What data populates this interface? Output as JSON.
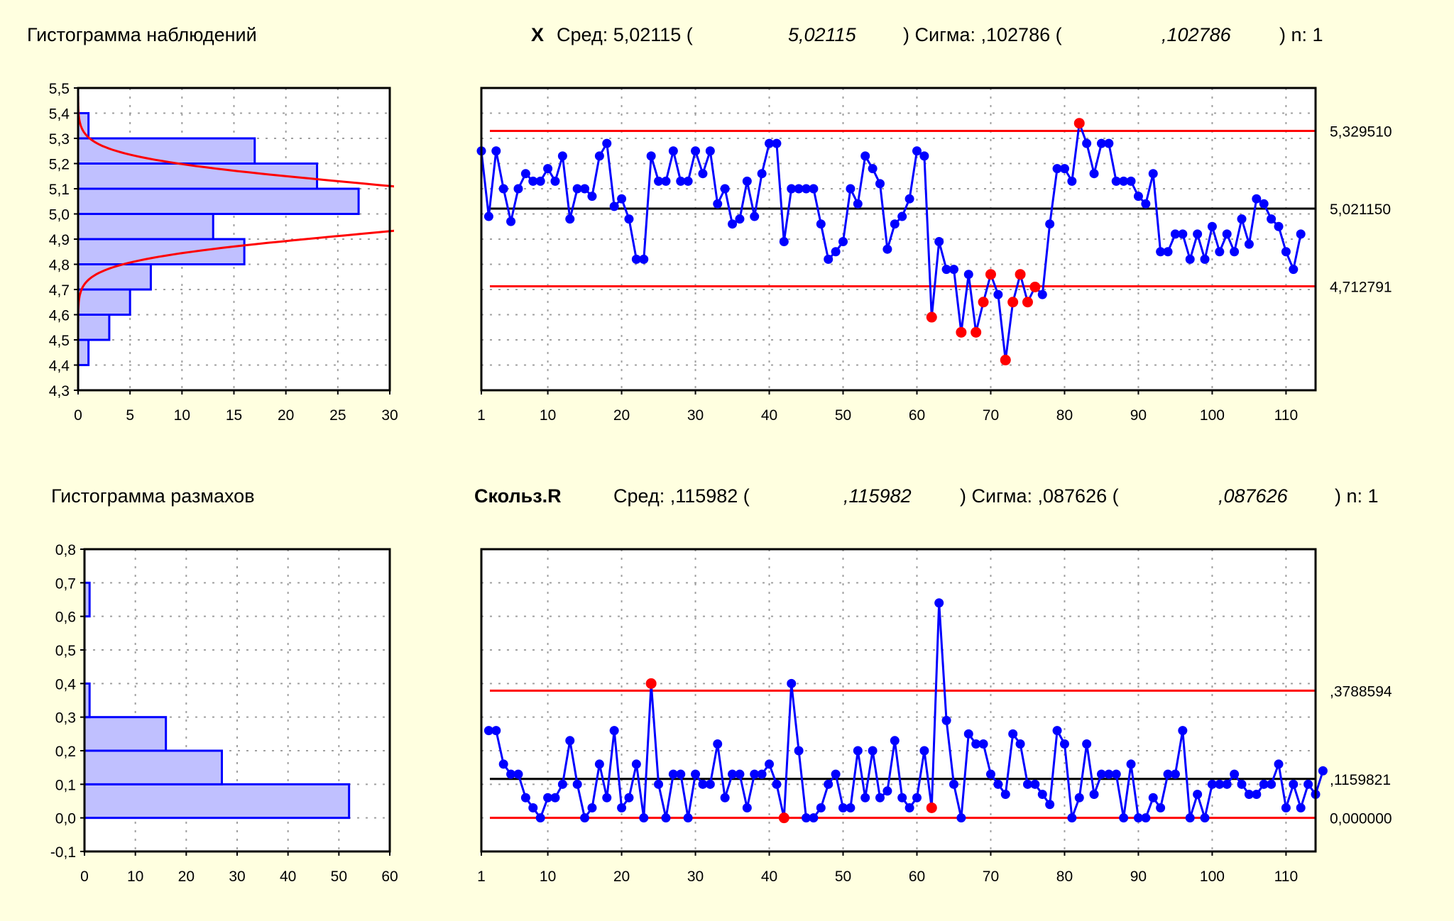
{
  "header": {
    "top_hist_title": "Гистограмма наблюдений",
    "top_chart_name": "X",
    "top_mean_label": "Сред: 5,02115 (",
    "top_mean_italic": "5,02115",
    "top_sigma_label": ") Сигма: ,102786 (",
    "top_sigma_italic": ",102786",
    "top_n_label": ") n: 1",
    "bot_hist_title": "Гистограмма размахов",
    "bot_chart_name": "Скольз.R",
    "bot_mean_label": "Сред: ,115982 (",
    "bot_mean_italic": ",115982",
    "bot_sigma_label": ") Сигма: ,087626 (",
    "bot_sigma_italic": ",087626",
    "bot_n_label": ") n: 1"
  },
  "colors": {
    "background": "#ffffe0",
    "series": "#0000ff",
    "limit": "#ff0000",
    "center": "#000000",
    "bar_fill": "#c0c0ff",
    "out_of_control": "#ff0000"
  },
  "chart_data": [
    {
      "type": "bar",
      "orientation": "horizontal",
      "title": "Гистограмма наблюдений",
      "bin_edges": [
        4.3,
        4.4,
        4.5,
        4.6,
        4.7,
        4.8,
        4.9,
        5.0,
        5.1,
        5.2,
        5.3,
        5.4
      ],
      "values": [
        0,
        1,
        3,
        5,
        7,
        16,
        13,
        27,
        23,
        17,
        1
      ],
      "normal_curve": {
        "mean": 5.02115,
        "sigma": 0.102786
      },
      "y_ticks": [
        "4,3",
        "4,4",
        "4,5",
        "4,6",
        "4,7",
        "4,8",
        "4,9",
        "5,0",
        "5,1",
        "5,2",
        "5,3",
        "5,4",
        "5,5"
      ],
      "ylim": [
        4.3,
        5.5
      ],
      "x_ticks": [
        "0",
        "5",
        "10",
        "15",
        "20",
        "25",
        "30"
      ],
      "xlim": [
        0,
        30
      ],
      "grid": true
    },
    {
      "type": "line",
      "title": "X",
      "center": 5.02115,
      "ucl": 5.32951,
      "lcl": 4.712791,
      "limit_labels": [
        "5,329510",
        "5,021150",
        "4,712791"
      ],
      "ylim": [
        4.3,
        5.5
      ],
      "xlim": [
        1,
        114
      ],
      "x_ticks": [
        "1",
        "10",
        "20",
        "30",
        "40",
        "50",
        "60",
        "70",
        "80",
        "90",
        "100",
        "110"
      ],
      "values": [
        5.25,
        4.99,
        5.25,
        5.1,
        4.97,
        5.1,
        5.16,
        5.13,
        5.13,
        5.18,
        5.13,
        5.23,
        4.98,
        5.1,
        5.1,
        5.07,
        5.23,
        5.28,
        5.03,
        5.06,
        4.98,
        4.82,
        4.82,
        5.23,
        5.13,
        5.13,
        5.25,
        5.13,
        5.13,
        5.25,
        5.16,
        5.25,
        5.04,
        5.1,
        4.96,
        4.98,
        5.13,
        4.99,
        5.16,
        5.28,
        5.28,
        4.89,
        5.1,
        5.1,
        5.1,
        5.1,
        4.96,
        4.82,
        4.85,
        4.89,
        5.1,
        5.04,
        5.23,
        5.18,
        5.12,
        4.86,
        4.96,
        4.99,
        5.06,
        5.25,
        5.23,
        4.59,
        4.89,
        4.78,
        4.78,
        4.53,
        4.76,
        4.53,
        4.65,
        4.76,
        4.68,
        4.42,
        4.65,
        4.76,
        4.65,
        4.71,
        4.68,
        4.96,
        5.18,
        5.18,
        5.13,
        5.36,
        5.28,
        5.16,
        5.28,
        5.28,
        5.13,
        5.13,
        5.13,
        5.07,
        5.04,
        5.16,
        4.85,
        4.85,
        4.92,
        4.92,
        4.82,
        4.92,
        4.82,
        4.95,
        4.85,
        4.92,
        4.85,
        4.98,
        4.88,
        5.06,
        5.04,
        4.98,
        4.95,
        4.85,
        4.78,
        4.92
      ],
      "out_of_control_points": [
        62,
        66,
        68,
        69,
        70,
        72,
        73,
        74,
        75,
        76,
        82
      ],
      "grid": true
    },
    {
      "type": "bar",
      "orientation": "horizontal",
      "title": "Гистограмма размахов",
      "bin_edges": [
        0.0,
        0.1,
        0.2,
        0.3,
        0.4,
        0.5,
        0.6,
        0.7
      ],
      "values": [
        52,
        27,
        16,
        1,
        0,
        0,
        1
      ],
      "y_ticks": [
        "-0,1",
        "0,0",
        "0,1",
        "0,2",
        "0,3",
        "0,4",
        "0,5",
        "0,6",
        "0,7",
        "0,8"
      ],
      "ylim": [
        -0.1,
        0.8
      ],
      "x_ticks": [
        "0",
        "10",
        "20",
        "30",
        "40",
        "50",
        "60"
      ],
      "xlim": [
        0,
        60
      ],
      "grid": true
    },
    {
      "type": "line",
      "title": "Скольз.R",
      "center": 0.1159821,
      "ucl": 0.3788594,
      "lcl": 0.0,
      "limit_labels": [
        ",3788594",
        ",1159821",
        "0,000000"
      ],
      "ylim": [
        -0.1,
        0.8
      ],
      "xlim": [
        1,
        114
      ],
      "x_ticks": [
        "1",
        "10",
        "20",
        "30",
        "40",
        "50",
        "60",
        "70",
        "80",
        "90",
        "100",
        "110"
      ],
      "x_start": 2,
      "values": [
        0.26,
        0.26,
        0.16,
        0.13,
        0.13,
        0.06,
        0.03,
        0.0,
        0.06,
        0.06,
        0.1,
        0.23,
        0.1,
        0.0,
        0.03,
        0.16,
        0.06,
        0.26,
        0.03,
        0.06,
        0.16,
        0.0,
        0.4,
        0.1,
        0.0,
        0.13,
        0.13,
        0.0,
        0.13,
        0.1,
        0.1,
        0.22,
        0.06,
        0.13,
        0.13,
        0.03,
        0.13,
        0.13,
        0.16,
        0.1,
        0.0,
        0.4,
        0.2,
        0.0,
        0.0,
        0.03,
        0.1,
        0.13,
        0.03,
        0.03,
        0.2,
        0.06,
        0.2,
        0.06,
        0.08,
        0.23,
        0.06,
        0.03,
        0.06,
        0.2,
        0.03,
        0.64,
        0.29,
        0.1,
        0.0,
        0.25,
        0.22,
        0.22,
        0.13,
        0.1,
        0.07,
        0.25,
        0.22,
        0.1,
        0.1,
        0.07,
        0.04,
        0.26,
        0.22,
        0.0,
        0.06,
        0.22,
        0.07,
        0.13,
        0.13,
        0.13,
        0.0,
        0.16,
        0.0,
        0.0,
        0.06,
        0.03,
        0.13,
        0.13,
        0.26,
        0.0,
        0.07,
        0.0,
        0.1,
        0.1,
        0.1,
        0.13,
        0.1,
        0.07,
        0.07,
        0.1,
        0.1,
        0.16,
        0.03,
        0.1,
        0.03,
        0.1,
        0.07,
        0.14
      ],
      "out_of_control_points": [
        24,
        42,
        62
      ],
      "grid": true
    }
  ]
}
